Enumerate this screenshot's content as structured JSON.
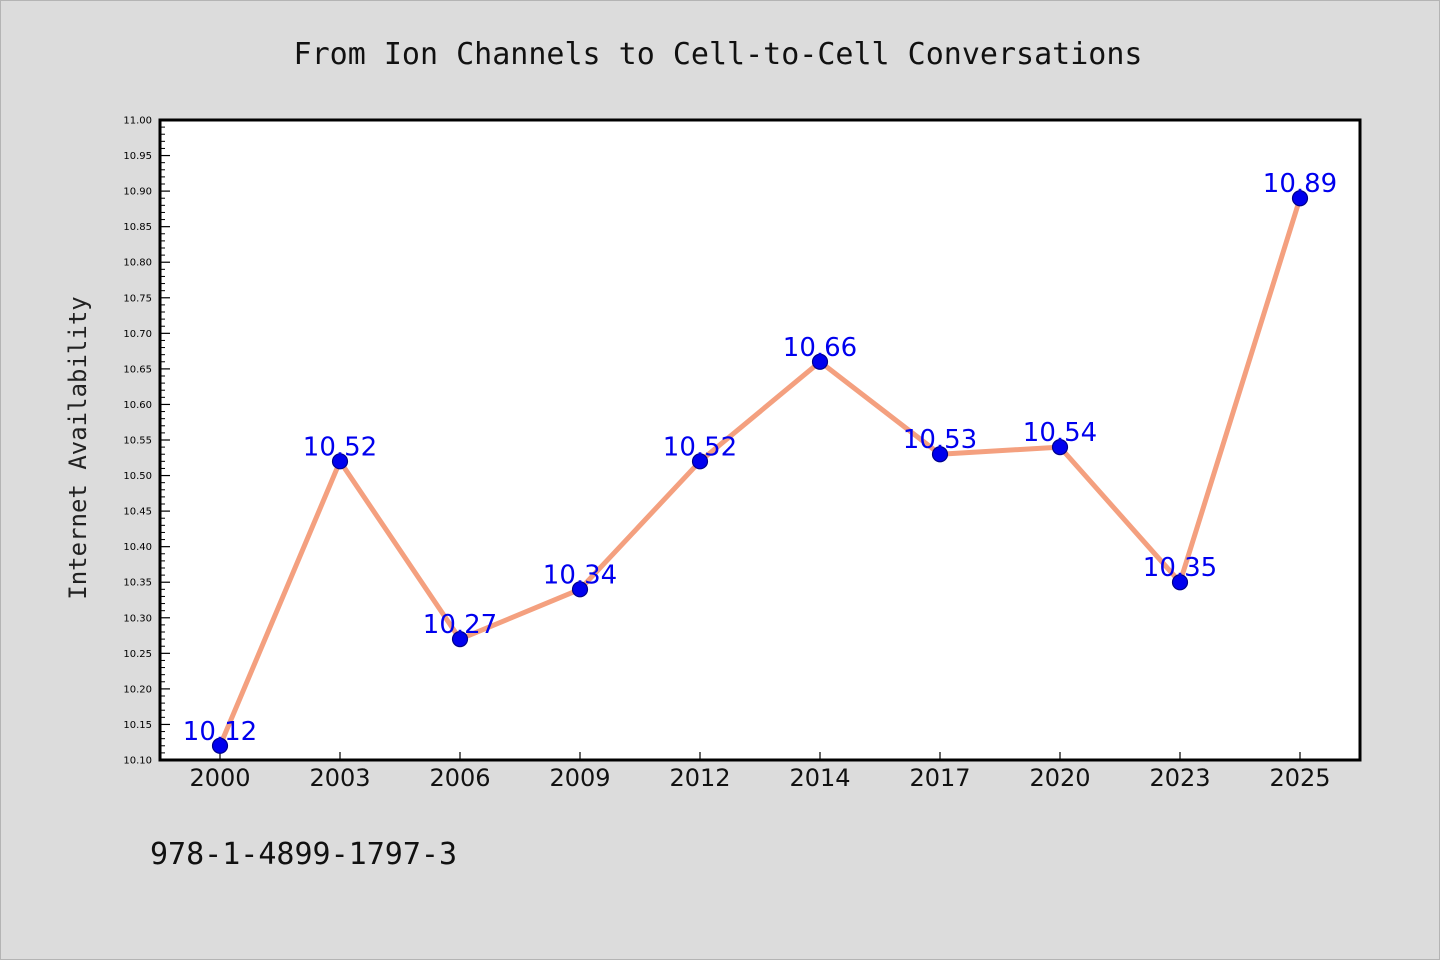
{
  "chart_data": {
    "type": "line",
    "title": "From Ion Channels to Cell-to-Cell Conversations",
    "ylabel": "Internet Availability",
    "xlabel": "",
    "categories": [
      "2000",
      "2003",
      "2006",
      "2009",
      "2012",
      "2014",
      "2017",
      "2020",
      "2023",
      "2025"
    ],
    "series": [
      {
        "values": [
          10.12,
          10.52,
          10.27,
          10.34,
          10.52,
          10.66,
          10.53,
          10.54,
          10.35,
          10.89
        ],
        "data_labels": [
          "10.12",
          "10.52",
          "10.27",
          "10.34",
          "10.52",
          "10.66",
          "10.53",
          "10.54",
          "10.35",
          "10.89"
        ]
      }
    ],
    "ylim": [
      10.1,
      11.0
    ],
    "ytick_step": 0.05,
    "grid": false,
    "legend": "none",
    "colors": {
      "line": "#f4a07f",
      "marker_fill": "#0000ee",
      "marker_stroke": "#00008b",
      "data_label": "#0000ee",
      "plot_background": "#ffffff",
      "page_background": "#dcdcdc"
    }
  },
  "footer": {
    "isbn": "978-1-4899-1797-3"
  }
}
